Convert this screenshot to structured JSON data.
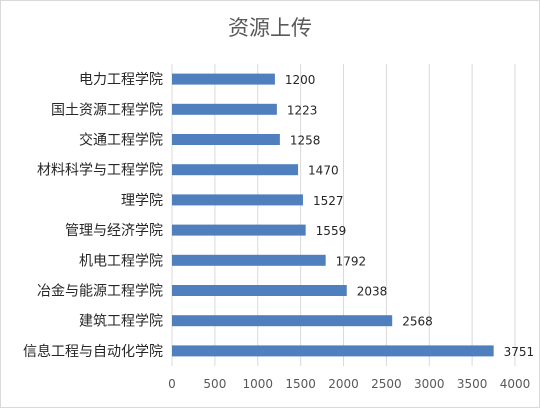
{
  "chart_data": {
    "type": "bar",
    "orientation": "horizontal",
    "title": "资源上传",
    "categories": [
      "电力工程学院",
      "国土资源工程学院",
      "交通工程学院",
      "材料科学与工程学院",
      "理学院",
      "管理与经济学院",
      "机电工程学院",
      "冶金与能源工程学院",
      "建筑工程学院",
      "信息工程与自动化学院"
    ],
    "values": [
      1200,
      1223,
      1258,
      1470,
      1527,
      1559,
      1792,
      2038,
      2568,
      3751
    ],
    "value_labels": [
      "1200",
      "1223",
      "1258",
      "1470",
      "1527",
      "1559",
      "1792",
      "2038",
      "2568",
      "3751"
    ],
    "x_ticks": [
      "0",
      "500",
      "1000",
      "1500",
      "2000",
      "2500",
      "3000",
      "3500",
      "4000"
    ],
    "xlim": [
      0,
      4000
    ],
    "grid": true,
    "legend": "none",
    "bar_color": "#4f7fbc",
    "grid_color": "#d9d9d9",
    "text_color": "#262626",
    "tick_color": "#595959"
  }
}
